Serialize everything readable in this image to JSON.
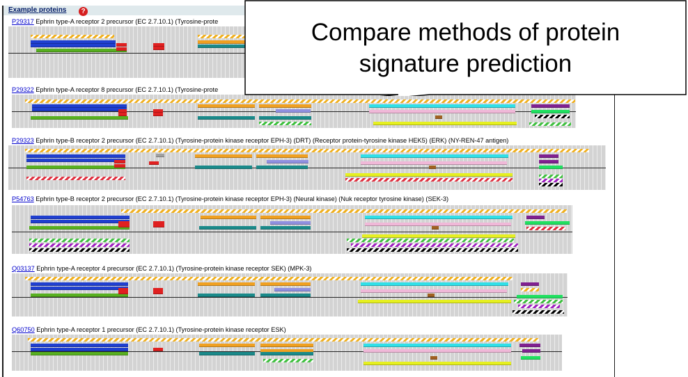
{
  "panel": {
    "title": "Example proteins",
    "help_glyph": "?"
  },
  "proteins": [
    {
      "accession": "P29317",
      "description": "Ephrin type-A receptor 2 precursor (EC 2.7.10.1) (Tyrosine-prote"
    },
    {
      "accession": "P29322",
      "description": "Ephrin type-A receptor 8 precursor (EC 2.7.10.1) (Tyrosine-prote"
    },
    {
      "accession": "P29323",
      "description": "Ephrin type-B receptor 2 precursor (EC 2.7.10.1) (Tyrosine-protein kinase receptor EPH-3) (DRT) (Receptor protein-tyrosine kinase HEK5) (ERK) (NY-REN-47 antigen)"
    },
    {
      "accession": "P54763",
      "description": "Ephrin type-B receptor 2 precursor (EC 2.7.10.1) (Tyrosine-protein kinase receptor EPH-3) (Neural kinase) (Nuk receptor tyrosine kinase) (SEK-3)"
    },
    {
      "accession": "Q03137",
      "description": "Ephrin type-A receptor 4 precursor (EC 2.7.10.1) (Tyrosine-protein kinase receptor SEK) (MPK-3)"
    },
    {
      "accession": "Q60750",
      "description": "Ephrin type-A receptor 1 precursor (EC 2.7.10.1) (Tyrosine-protein kinase receptor ESK)"
    }
  ],
  "callout": {
    "line1": "Compare methods of protein",
    "line2": "signature prediction"
  },
  "colors": {
    "blue": "#1f3fd0",
    "green": "#58b020",
    "red": "#e02020",
    "orange": "#f0a020",
    "teal": "#1a8a8a",
    "lavender": "#9090e0",
    "cyan": "#30e0e8",
    "pink": "#f0b8d8",
    "yellow": "#e6f020",
    "purple": "#802090",
    "brown": "#a06020",
    "lime": "#20e060",
    "hatch_gold": "#f0b020",
    "hatch_red": "#e03040",
    "hatch_green": "#40c040",
    "hatch_purple": "#a020c0",
    "hatch_black": "#000000",
    "gray_light": "#a0a0a0"
  }
}
